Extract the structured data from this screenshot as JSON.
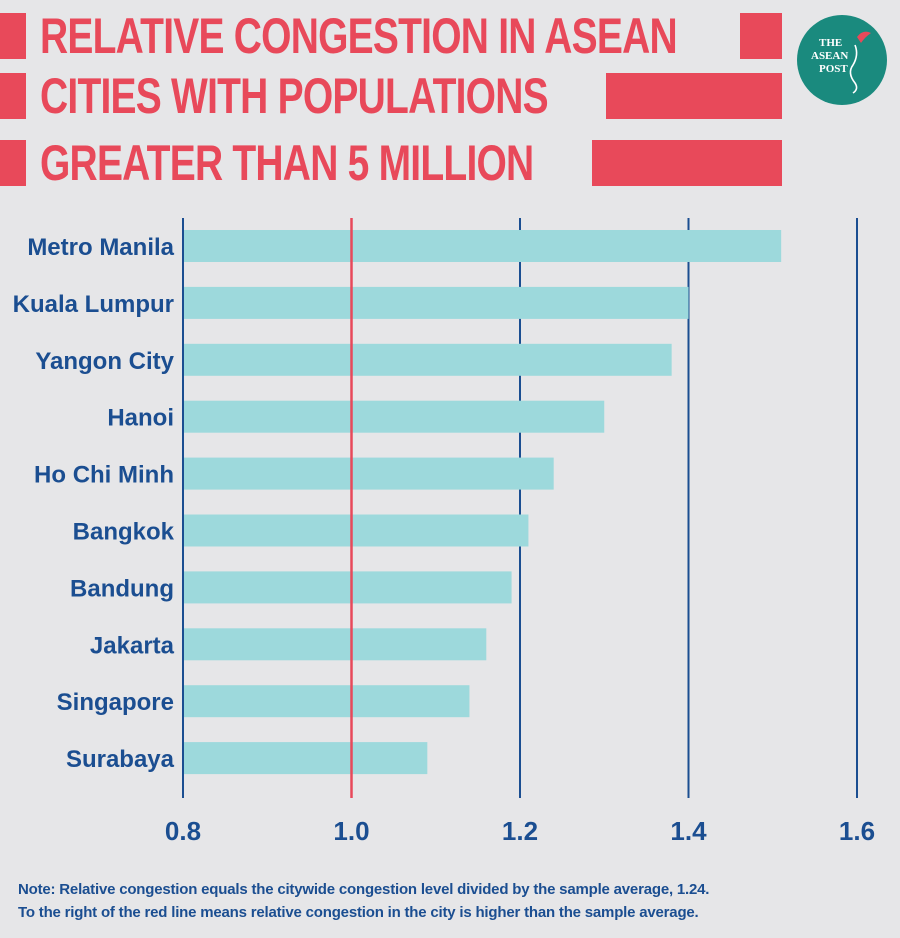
{
  "title": {
    "lines": [
      "RELATIVE CONGESTION IN ASEAN",
      "CITIES WITH POPULATIONS",
      "GREATER THAN 5 MILLION"
    ]
  },
  "logo": {
    "lines": [
      "THE",
      "ASEAN",
      "POST"
    ]
  },
  "colors": {
    "accent": "#e8495a",
    "bar": "#9dd9dc",
    "text": "#1b4e91",
    "background": "#e6e6e8",
    "logo": "#1a8a7e"
  },
  "chart_data": {
    "type": "bar",
    "orientation": "horizontal",
    "categories": [
      "Metro Manila",
      "Kuala Lumpur",
      "Yangon City",
      "Hanoi",
      "Ho Chi Minh",
      "Bangkok",
      "Bandung",
      "Jakarta",
      "Singapore",
      "Surabaya"
    ],
    "values": [
      1.51,
      1.4,
      1.38,
      1.3,
      1.24,
      1.21,
      1.19,
      1.16,
      1.14,
      1.09
    ],
    "xlim": [
      0.8,
      1.6
    ],
    "xticks": [
      "0.8",
      "1.0",
      "1.2",
      "1.4",
      "1.6"
    ],
    "reference_line": 1.0,
    "grid": true
  },
  "note": {
    "line1": "Note: Relative congestion equals the citywide congestion level divided by the sample average, 1.24.",
    "line2": "To the right of the red line means relative congestion in the city is higher than the sample average."
  }
}
